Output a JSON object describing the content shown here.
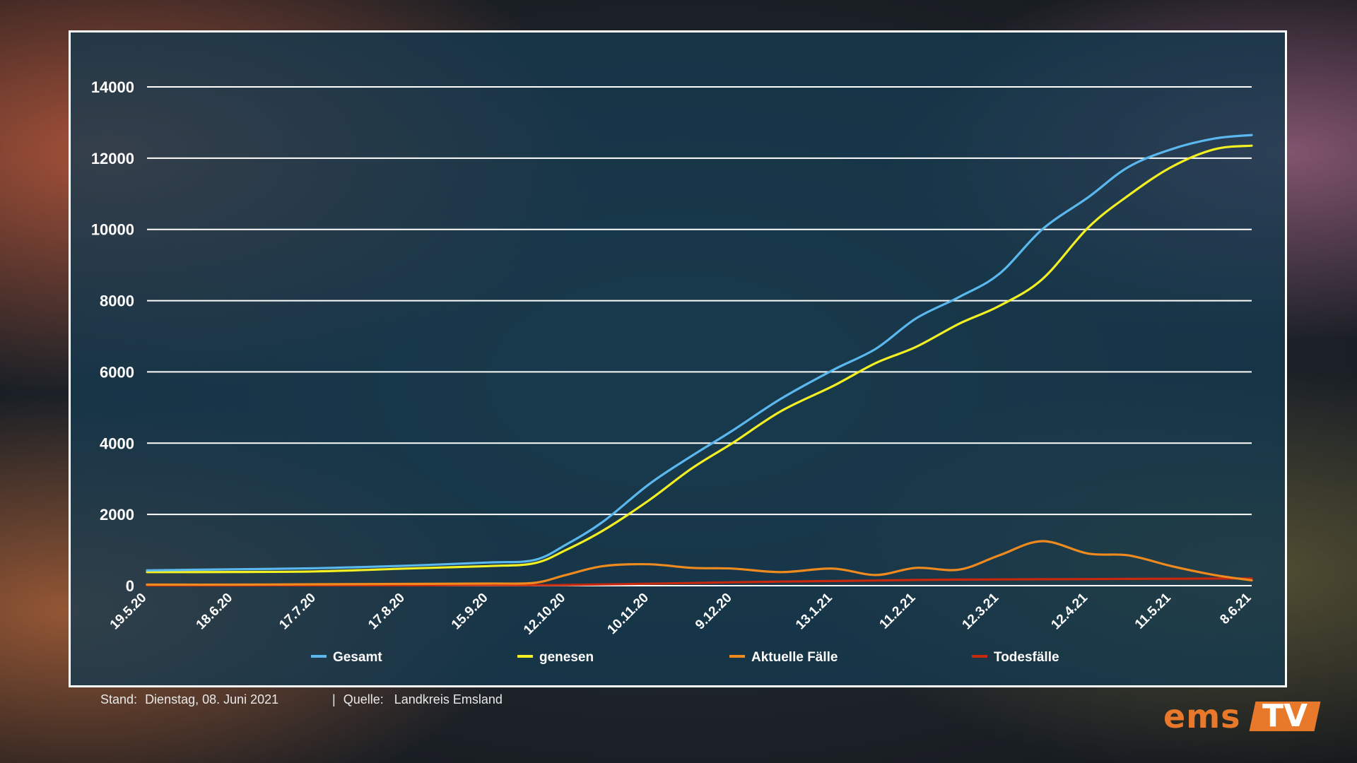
{
  "footer": {
    "stand_label": "Stand:",
    "stand_value": "Dienstag, 08. Juni 2021",
    "separator": "|",
    "source_label": "Quelle:",
    "source_value": "Landkreis Emsland"
  },
  "logo": {
    "left": "ems",
    "right": "TV"
  },
  "colors": {
    "Gesamt": "#5ab8ee",
    "genesen": "#f2f022",
    "Aktuelle Fälle": "#ee8a1e",
    "Todesfälle": "#c8280e"
  },
  "chart_data": {
    "type": "line",
    "title": "",
    "xlabel": "",
    "ylabel": "",
    "ylim": [
      0,
      14000
    ],
    "yticks": [
      "0",
      "2000",
      "4000",
      "6000",
      "8000",
      "10000",
      "12000",
      "14000"
    ],
    "xticks": [
      "19.5.20",
      "18.6.20",
      "17.7.20",
      "17.8.20",
      "15.9.20",
      "12.10.20",
      "10.11.20",
      "9.12.20",
      "13.1.21",
      "11.2.21",
      "12.3.21",
      "12.4.21",
      "11.5.21",
      "8.6.21"
    ],
    "grid": "horizontal",
    "legend": "bottom",
    "x": [
      "19.5.20",
      "18.6.20",
      "17.7.20",
      "17.8.20",
      "15.9.20",
      "1.10.20",
      "12.10.20",
      "25.10.20",
      "10.11.20",
      "25.11.20",
      "9.12.20",
      "26.12.20",
      "13.1.21",
      "28.1.21",
      "11.2.21",
      "26.2.21",
      "12.3.21",
      "27.3.21",
      "12.4.21",
      "26.4.21",
      "11.5.21",
      "26.5.21",
      "8.6.21"
    ],
    "series": [
      {
        "name": "Gesamt",
        "values": [
          430,
          460,
          490,
          560,
          650,
          720,
          1150,
          1800,
          2850,
          3650,
          4350,
          5250,
          6050,
          6650,
          7500,
          8100,
          8750,
          10000,
          10900,
          11750,
          12250,
          12550,
          12650
        ]
      },
      {
        "name": "genesen",
        "values": [
          380,
          385,
          400,
          480,
          550,
          630,
          1000,
          1550,
          2400,
          3300,
          4000,
          4900,
          5600,
          6250,
          6700,
          7350,
          7850,
          8600,
          10050,
          10950,
          11750,
          12250,
          12350
        ]
      },
      {
        "name": "Aktuelle Fälle",
        "values": [
          30,
          30,
          40,
          50,
          60,
          80,
          300,
          550,
          600,
          500,
          480,
          380,
          480,
          300,
          500,
          450,
          850,
          1250,
          900,
          850,
          550,
          300,
          150
        ]
      },
      {
        "name": "Todesfälle",
        "values": [
          10,
          10,
          12,
          12,
          15,
          15,
          20,
          35,
          55,
          75,
          95,
          115,
          130,
          145,
          160,
          170,
          175,
          180,
          185,
          190,
          195,
          200,
          200
        ]
      }
    ]
  }
}
